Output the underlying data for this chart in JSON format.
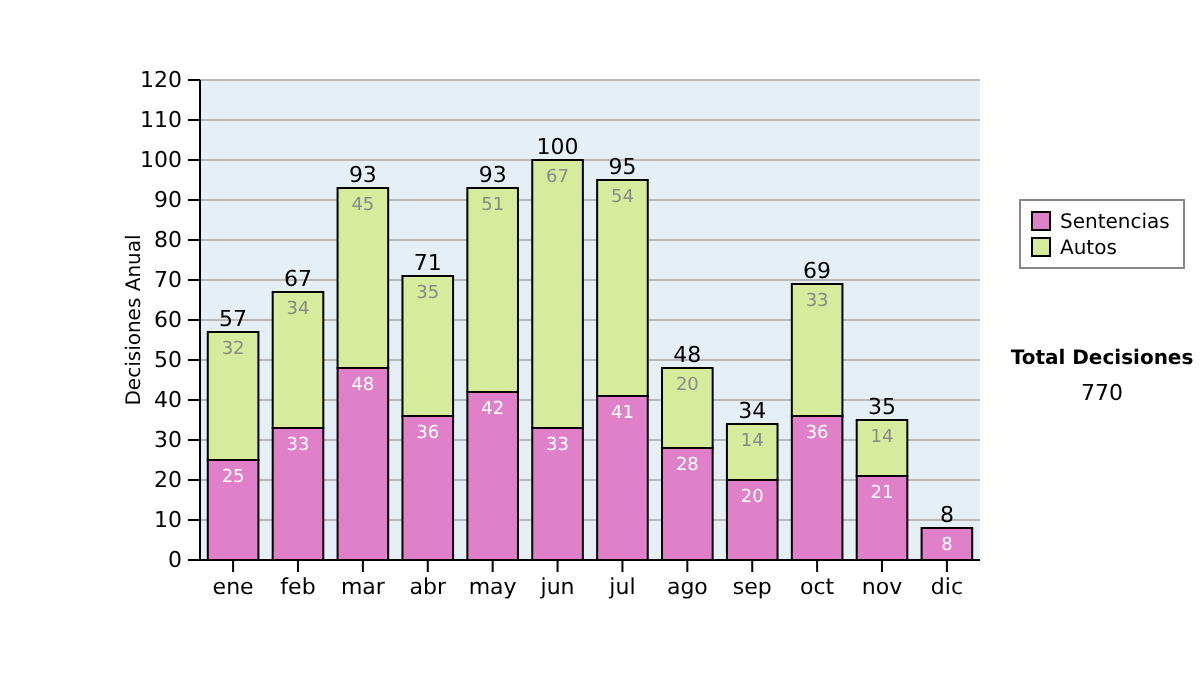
{
  "chart_data": {
    "type": "bar",
    "ylabel": "Decisiones Anual",
    "categories": [
      "ene",
      "feb",
      "mar",
      "abr",
      "may",
      "jun",
      "jul",
      "ago",
      "sep",
      "oct",
      "nov",
      "dic"
    ],
    "stacked": true,
    "series": [
      {
        "name": "Sentencias",
        "color": "#df80c9",
        "values": [
          25,
          33,
          48,
          36,
          42,
          33,
          41,
          28,
          20,
          36,
          21,
          8
        ],
        "value_labels": [
          "25",
          "33",
          "48",
          "36",
          "42",
          "33",
          "41",
          "28",
          "20",
          "36",
          "21",
          "8"
        ]
      },
      {
        "name": "Autos",
        "color": "#d6ec9c",
        "values": [
          32,
          34,
          45,
          35,
          51,
          67,
          54,
          20,
          14,
          33,
          14,
          0
        ],
        "value_labels": [
          "32",
          "34",
          "45",
          "35",
          "51",
          "67",
          "54",
          "20",
          "14",
          "33",
          "14",
          null
        ]
      }
    ],
    "totals": [
      "57",
      "67",
      "93",
      "71",
      "93",
      "100",
      "95",
      "48",
      "34",
      "69",
      "35",
      "8"
    ],
    "ylim": [
      0,
      120
    ],
    "yticks": [
      0,
      10,
      20,
      30,
      40,
      50,
      60,
      70,
      80,
      90,
      100,
      110,
      120
    ],
    "grid": "y",
    "legend": "right",
    "annotations": [
      "Total Decisiones",
      "770"
    ]
  }
}
